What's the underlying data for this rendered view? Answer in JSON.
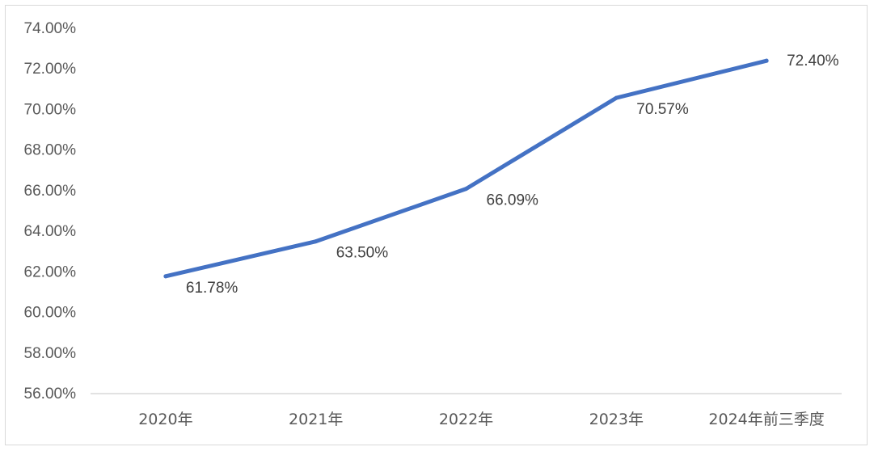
{
  "chart_data": {
    "type": "line",
    "categories": [
      "2020年",
      "2021年",
      "2022年",
      "2023年",
      "2024年前三季度"
    ],
    "series": [
      {
        "values": [
          61.78,
          63.5,
          66.09,
          70.57,
          72.4
        ],
        "labels": [
          "61.78%",
          "63.50%",
          "66.09%",
          "70.57%",
          "72.40%"
        ],
        "color": "#4472C4"
      }
    ],
    "ylim": [
      56,
      74
    ],
    "yticks": [
      56,
      58,
      60,
      62,
      64,
      66,
      68,
      70,
      72,
      74
    ],
    "ytick_labels": [
      "56.00%",
      "58.00%",
      "60.00%",
      "62.00%",
      "64.00%",
      "66.00%",
      "68.00%",
      "70.00%",
      "72.00%",
      "74.00%"
    ],
    "title": "",
    "xlabel": "",
    "ylabel": "",
    "grid": false,
    "legend": "none",
    "axis_color": "#d9d9d9"
  }
}
